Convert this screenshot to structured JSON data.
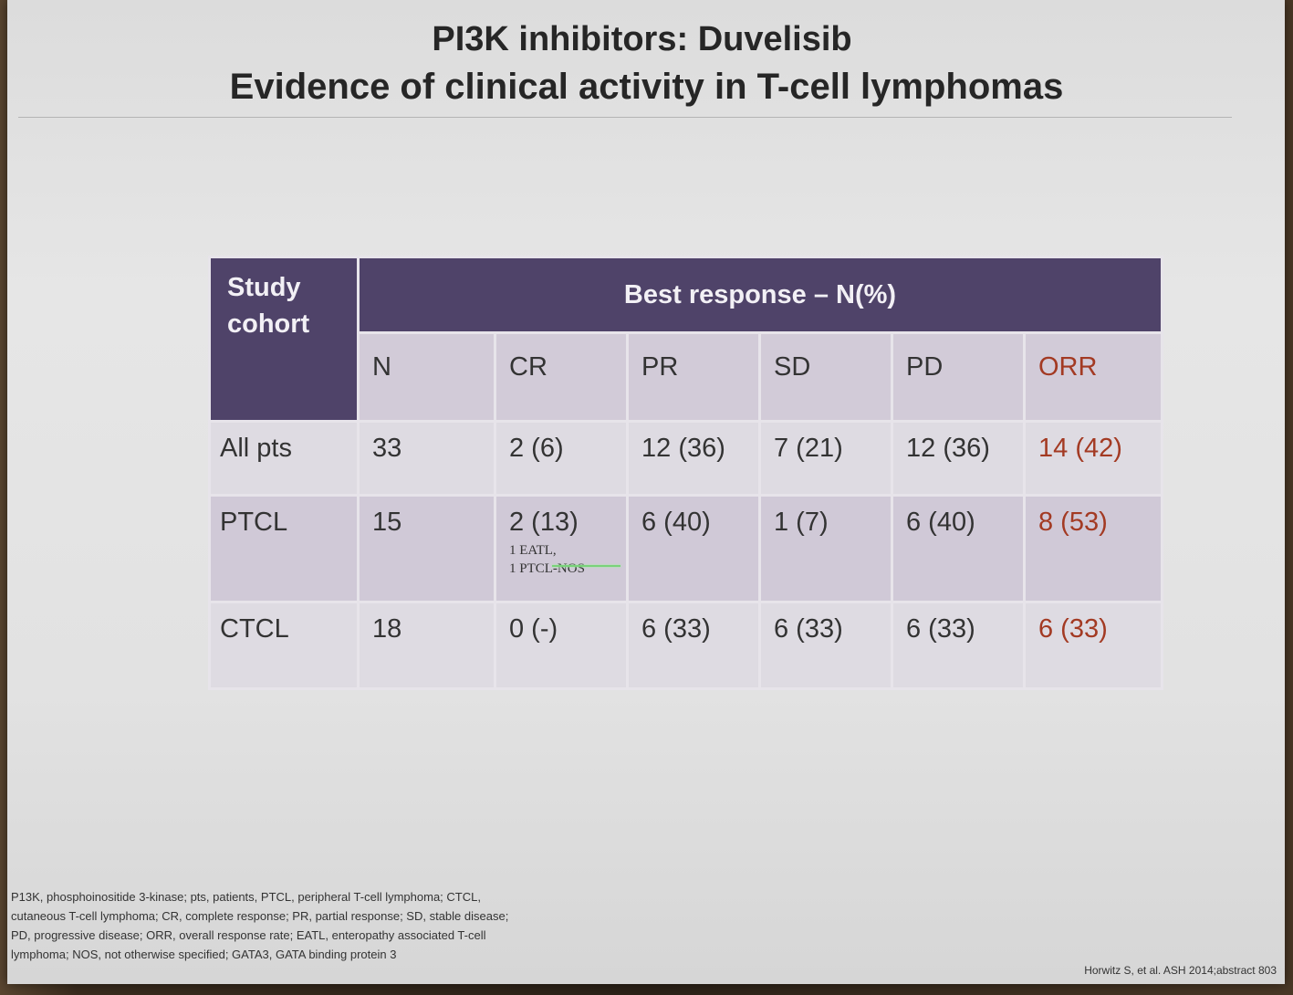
{
  "slide": {
    "title_line1": "PI3K inhibitors: Duvelisib",
    "title_line2": "Evidence of clinical activity in T-cell lymphomas"
  },
  "table": {
    "cohort_header": "Study cohort",
    "group_header": "Best response – N(%)",
    "columns": [
      "N",
      "CR",
      "PR",
      "SD",
      "PD",
      "ORR"
    ],
    "rows": [
      {
        "cohort": "All pts",
        "n": "33",
        "cr": "2 (6)",
        "pr": "12 (36)",
        "sd": "7 (21)",
        "pd": "12 (36)",
        "orr": "14 (42)"
      },
      {
        "cohort": "PTCL",
        "n": "15",
        "cr": "2 (13)",
        "cr_note_1": "1 EATL,",
        "cr_note_2": "1 PTCL-NOS",
        "pr": "6 (40)",
        "sd": "1 (7)",
        "pd": "6 (40)",
        "orr": "8 (53)"
      },
      {
        "cohort": "CTCL",
        "n": "18",
        "cr": "0 (-)",
        "pr": "6 (33)",
        "sd": "6 (33)",
        "pd": "6 (33)",
        "orr": "6 (33)"
      }
    ]
  },
  "footnote": {
    "line1": "P13K, phosphoinositide 3-kinase; pts, patients, PTCL, peripheral T-cell lymphoma; CTCL,",
    "line2": "cutaneous T-cell lymphoma; CR, complete response; PR, partial response; SD, stable disease;",
    "line3": "PD, progressive disease; ORR, overall response rate; EATL, enteropathy associated T-cell",
    "line4": "lymphoma; NOS, not otherwise specified; GATA3, GATA binding protein 3"
  },
  "citation": "Horwitz S, et al. ASH 2014;abstract 803",
  "colors": {
    "header_bg": "#4f4369",
    "orr_text": "#a33a23",
    "slide_bg": "#e2e2e2"
  }
}
